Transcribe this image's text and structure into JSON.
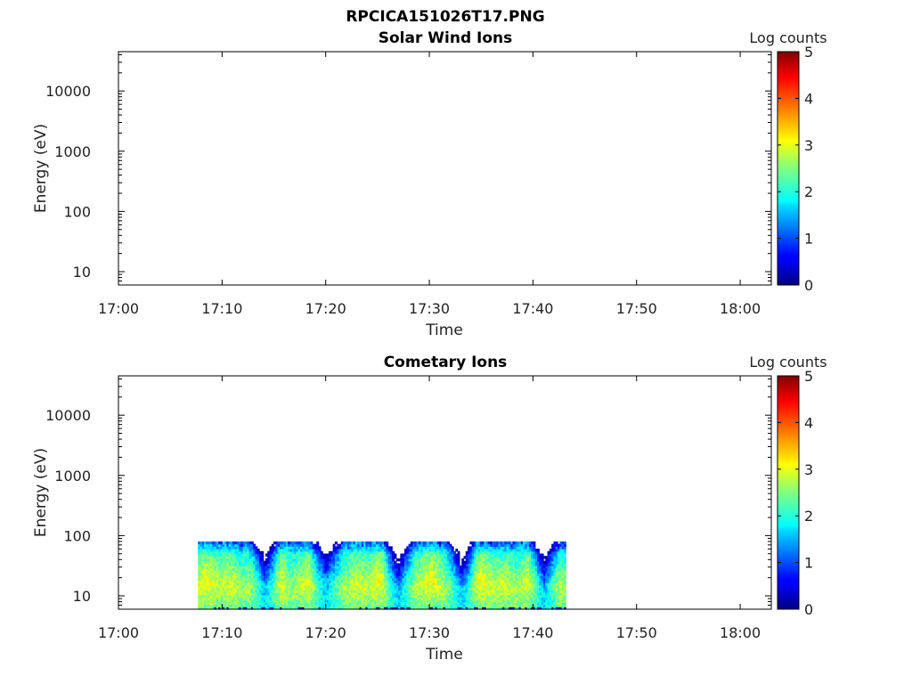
{
  "figure": {
    "title": "RPCICA151026T17.PNG",
    "colors": {
      "axis": "#000000",
      "text": "#222222",
      "background": "#ffffff"
    }
  },
  "colorbar": {
    "label": "Log counts",
    "ticks": [
      "0",
      "1",
      "2",
      "3",
      "4",
      "5"
    ],
    "colormap": "jet",
    "range": [
      0,
      5
    ]
  },
  "chart_data": [
    {
      "type": "heatmap",
      "title": "Solar Wind Ions",
      "xlabel": "Time",
      "ylabel": "Energy (eV)",
      "x_tick_labels": [
        "17:00",
        "17:10",
        "17:20",
        "17:30",
        "17:40",
        "17:50",
        "18:00"
      ],
      "y_tick_labels": [
        "10",
        "100",
        "1000",
        "10000"
      ],
      "yscale": "log",
      "ylim": [
        6,
        45000
      ],
      "xlim": [
        "17:00",
        "18:03"
      ],
      "data_present": false,
      "data_time_range": null,
      "data_energy_range": null
    },
    {
      "type": "heatmap",
      "title": "Cometary Ions",
      "xlabel": "Time",
      "ylabel": "Energy (eV)",
      "x_tick_labels": [
        "17:00",
        "17:10",
        "17:20",
        "17:30",
        "17:40",
        "17:50",
        "18:00"
      ],
      "y_tick_labels": [
        "10",
        "100",
        "1000",
        "10000"
      ],
      "yscale": "log",
      "ylim": [
        6,
        45000
      ],
      "xlim": [
        "17:00",
        "18:03"
      ],
      "data_present": true,
      "data_time_range": [
        "17:07:40",
        "17:43:10"
      ],
      "data_energy_range": [
        6,
        80
      ],
      "typical_log_counts": [
        1.5,
        3
      ],
      "low_count_dips_at": [
        "17:14",
        "17:20",
        "17:27",
        "17:33",
        "17:41"
      ]
    }
  ]
}
